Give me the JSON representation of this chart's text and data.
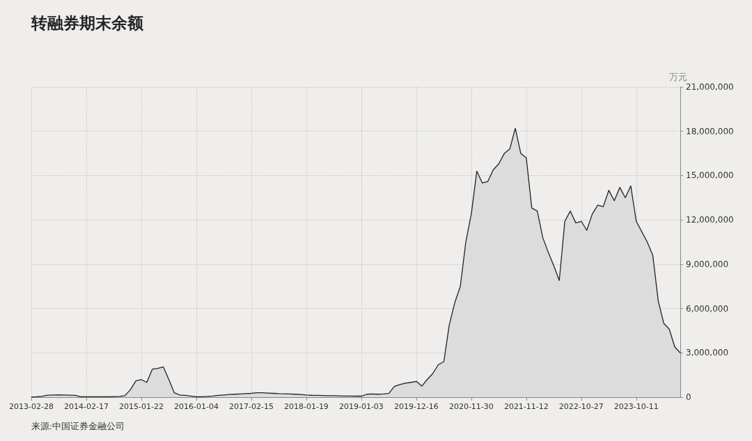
{
  "chart_data": {
    "type": "area",
    "title": "转融券期末余额",
    "ylabel": "万元",
    "categories": [
      "2013-02-28",
      null,
      null,
      null,
      null,
      null,
      null,
      null,
      null,
      null,
      "2014-02-17",
      null,
      null,
      null,
      null,
      null,
      null,
      null,
      null,
      null,
      "2015-01-22",
      null,
      null,
      null,
      null,
      null,
      null,
      null,
      null,
      null,
      "2016-01-04",
      null,
      null,
      null,
      null,
      null,
      null,
      null,
      null,
      null,
      "2017-02-15",
      null,
      null,
      null,
      null,
      null,
      null,
      null,
      null,
      null,
      "2018-01-19",
      null,
      null,
      null,
      null,
      null,
      null,
      null,
      null,
      null,
      "2019-01-03",
      null,
      null,
      null,
      null,
      null,
      null,
      null,
      null,
      null,
      "2019-12-16",
      null,
      null,
      null,
      null,
      null,
      null,
      null,
      null,
      null,
      "2020-11-30",
      null,
      null,
      null,
      null,
      null,
      null,
      null,
      null,
      null,
      "2021-11-12",
      null,
      null,
      null,
      null,
      null,
      null,
      null,
      null,
      null,
      "2022-10-27",
      null,
      null,
      null,
      null,
      null,
      null,
      null,
      null,
      null,
      "2023-10-11",
      null,
      null,
      null,
      null,
      null,
      null,
      null,
      null
    ],
    "series": [
      {
        "color": "#222222",
        "values": [
          20000,
          30000,
          60000,
          140000,
          150000,
          160000,
          150000,
          140000,
          120000,
          30000,
          30000,
          30000,
          30000,
          30000,
          30000,
          40000,
          50000,
          100000,
          500000,
          1100000,
          1190000,
          1000000,
          1900000,
          1950000,
          2050000,
          1200000,
          300000,
          150000,
          120000,
          80000,
          30000,
          30000,
          50000,
          80000,
          120000,
          150000,
          180000,
          200000,
          220000,
          240000,
          260000,
          300000,
          300000,
          280000,
          260000,
          240000,
          230000,
          220000,
          200000,
          180000,
          150000,
          130000,
          120000,
          110000,
          100000,
          100000,
          90000,
          80000,
          80000,
          70000,
          70000,
          200000,
          220000,
          200000,
          220000,
          250000,
          720000,
          850000,
          950000,
          1000000,
          1070000,
          750000,
          1200000,
          1600000,
          2200000,
          2400000,
          4900000,
          6400000,
          7500000,
          10500000,
          12400000,
          15300000,
          14500000,
          14600000,
          15400000,
          15800000,
          16500000,
          16800000,
          18200000,
          16500000,
          16200000,
          12800000,
          12600000,
          10800000,
          9800000,
          8900000,
          7900000,
          11900000,
          12600000,
          11800000,
          11900000,
          11300000,
          12400000,
          13000000,
          12900000,
          14000000,
          13300000,
          14200000,
          13500000,
          14300000,
          11900000,
          11200000,
          10500000,
          9600000,
          6500000,
          5000000,
          4600000,
          3400000,
          3000000
        ]
      }
    ],
    "ylim": [
      0,
      21000000
    ],
    "yticks": [
      0,
      {
        "value": 3000000,
        "label": "3,000,000"
      },
      {
        "value": 6000000,
        "label": "6,000,000"
      },
      {
        "value": 9000000,
        "label": "9,000,000"
      },
      {
        "value": 12000000,
        "label": "12,000,000"
      },
      {
        "value": 15000000,
        "label": "15,000,000"
      },
      {
        "value": 18000000,
        "label": "18,000,000"
      },
      {
        "value": 21000000,
        "label": "21,000,000"
      }
    ],
    "grid": true,
    "line_style": "solid",
    "annotations": [
      "来源:中国证券金融公司"
    ]
  }
}
